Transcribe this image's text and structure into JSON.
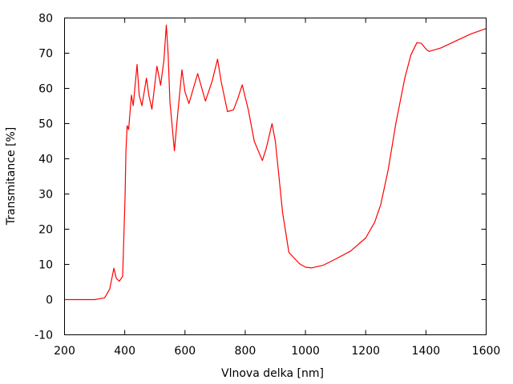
{
  "chart_data": {
    "type": "line",
    "title": "",
    "xlabel": "Vlnova delka [nm]",
    "ylabel": "Transmitance [%]",
    "xlim": [
      200,
      1600
    ],
    "ylim": [
      -10,
      80
    ],
    "xticks": [
      200,
      400,
      600,
      800,
      1000,
      1200,
      1400,
      1600
    ],
    "yticks": [
      -10,
      0,
      10,
      20,
      30,
      40,
      50,
      60,
      70,
      80
    ],
    "grid": false,
    "legend": "none",
    "series": [
      {
        "color": "#ff0000",
        "x": [
          200,
          250,
          300,
          320,
          333,
          350,
          364,
          372,
          382,
          393,
          401,
          404,
          408,
          413,
          422,
          428,
          441,
          448,
          457,
          472,
          480,
          490,
          507,
          519,
          530,
          538,
          544,
          550,
          565,
          575,
          590,
          600,
          613,
          642,
          668,
          690,
          708,
          720,
          741,
          761,
          775,
          790,
          810,
          830,
          857,
          870,
          889,
          900,
          912,
          924,
          945,
          980,
          1000,
          1020,
          1060,
          1100,
          1150,
          1200,
          1230,
          1250,
          1275,
          1300,
          1330,
          1350,
          1370,
          1385,
          1400,
          1410,
          1450,
          1500,
          1550,
          1600
        ],
        "y": [
          0,
          0,
          0,
          0.3,
          0.5,
          3,
          8.9,
          6,
          5.2,
          6.6,
          29,
          42,
          49.4,
          48.3,
          58.1,
          55.1,
          66.8,
          58,
          55.1,
          62.9,
          58,
          54.1,
          66.3,
          60.9,
          68,
          78,
          70,
          56.2,
          42.3,
          52,
          65.3,
          59,
          55.7,
          64.2,
          56.4,
          62,
          68.3,
          62,
          53.4,
          53.9,
          57,
          61,
          54,
          45,
          39.5,
          43,
          50,
          45,
          35,
          24.8,
          13.4,
          10.2,
          9.2,
          9,
          9.8,
          11.5,
          13.8,
          17.5,
          22,
          27,
          37,
          50,
          63,
          69.5,
          73,
          72.8,
          71.2,
          70.5,
          71.5,
          73.5,
          75.5,
          77
        ]
      }
    ]
  }
}
